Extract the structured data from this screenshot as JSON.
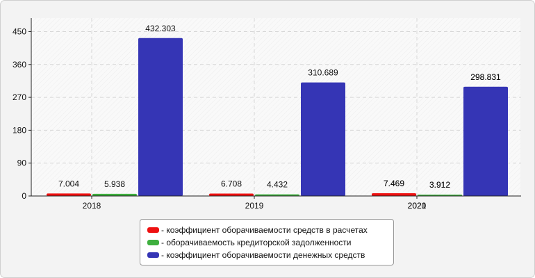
{
  "chart_data": {
    "type": "bar",
    "categories": [
      "2018",
      "2019",
      "2020",
      "2021"
    ],
    "series": [
      {
        "name": "- коэффициент оборачиваемости средств в расчетах",
        "color": "#ee1111",
        "values": [
          7.004,
          6.708,
          7.469,
          7.469
        ],
        "labels": [
          "7.004",
          "6.708",
          "7.469",
          "7.469"
        ]
      },
      {
        "name": "- оборачиваемость кредиторской задолженности",
        "color": "#3faf3f",
        "values": [
          5.938,
          4.432,
          3.912,
          3.912
        ],
        "labels": [
          "5.938",
          "4.432",
          "3.912",
          "3.912"
        ]
      },
      {
        "name": "- коэффициент оборачиваемости денежных средств",
        "color": "#3535b5",
        "values": [
          432.303,
          310.689,
          298.831,
          298.831
        ],
        "labels": [
          "432.303",
          "310.689",
          "298.831",
          "298.831"
        ]
      }
    ],
    "yticks": [
      0,
      90,
      180,
      270,
      360,
      450
    ],
    "ylim": [
      0,
      487
    ],
    "grid": true,
    "legend_position": "bottom"
  }
}
